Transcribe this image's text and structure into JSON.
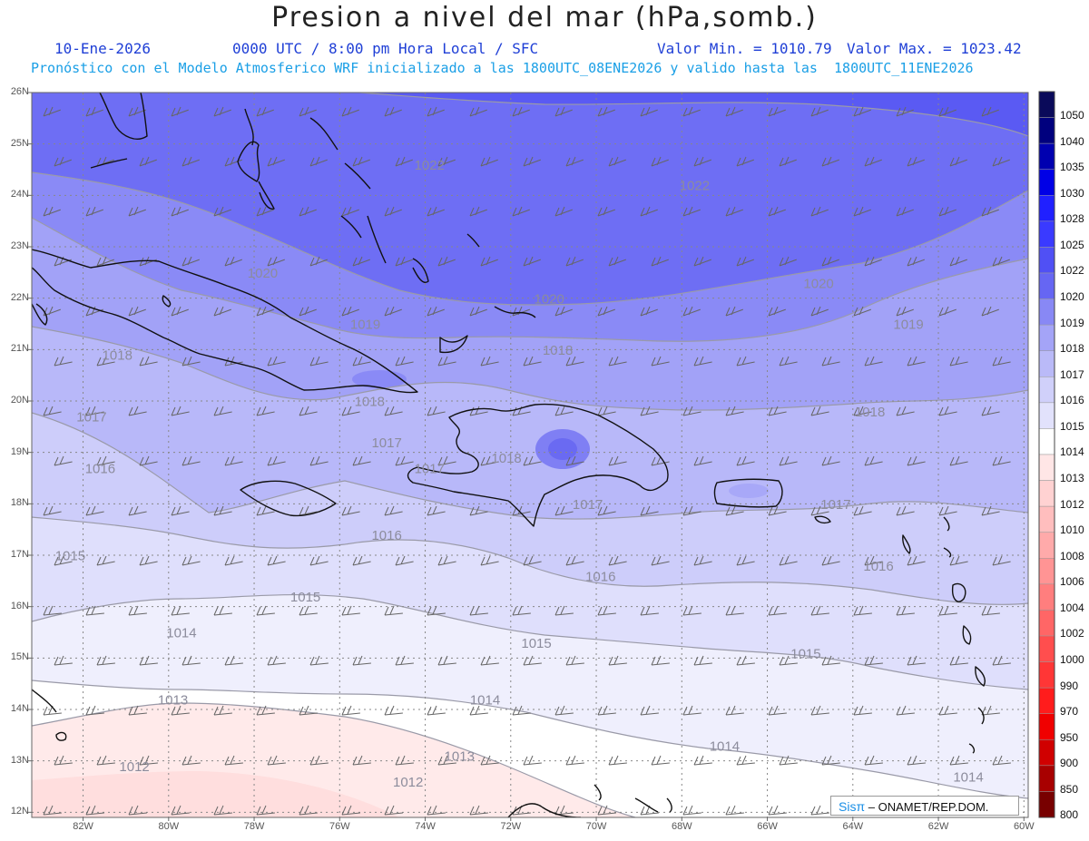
{
  "title": "Presion a nivel del mar (hPa,somb.)",
  "header": {
    "date": "10-Ene-2026",
    "time_info": "0000 UTC / 8:00 pm Hora Local / SFC",
    "min_value": "Valor Min. = 1010.79",
    "max_value": "Valor Max. = 1023.42",
    "model_info": "Pronóstico con el Modelo Atmosferico WRF inicializado a las 1800UTC_08ENE2026 y valido hasta las  1800UTC_11ENE2026"
  },
  "map": {
    "lat_labels": [
      "26N",
      "25N",
      "24N",
      "23N",
      "22N",
      "21N",
      "20N",
      "19N",
      "18N",
      "17N",
      "16N",
      "15N",
      "14N",
      "13N",
      "12N"
    ],
    "lon_labels": [
      "82W",
      "80W",
      "78W",
      "76W",
      "74W",
      "72W",
      "70W",
      "68W",
      "66W",
      "64W",
      "62W",
      "60W"
    ],
    "contour_labels": [
      {
        "text": "1022",
        "lon": -73.9,
        "lat": 24.5
      },
      {
        "text": "1022",
        "lon": -67.7,
        "lat": 24.1
      },
      {
        "text": "1020",
        "lon": -77.8,
        "lat": 22.4
      },
      {
        "text": "1020",
        "lon": -71.1,
        "lat": 21.9
      },
      {
        "text": "1020",
        "lon": -64.8,
        "lat": 22.2
      },
      {
        "text": "1019",
        "lon": -75.4,
        "lat": 21.4
      },
      {
        "text": "1019",
        "lon": -62.7,
        "lat": 21.4
      },
      {
        "text": "1018",
        "lon": -81.2,
        "lat": 20.8
      },
      {
        "text": "1018",
        "lon": -70.9,
        "lat": 20.9
      },
      {
        "text": "1018",
        "lon": -75.3,
        "lat": 19.9
      },
      {
        "text": "1018",
        "lon": -63.6,
        "lat": 19.7
      },
      {
        "text": "1018",
        "lon": -72.1,
        "lat": 18.8
      },
      {
        "text": "1017",
        "lon": -81.8,
        "lat": 19.6
      },
      {
        "text": "1017",
        "lon": -74.9,
        "lat": 19.1
      },
      {
        "text": "1017",
        "lon": -73.9,
        "lat": 18.6
      },
      {
        "text": "1017",
        "lon": -70.2,
        "lat": 17.9
      },
      {
        "text": "1017",
        "lon": -64.4,
        "lat": 17.9
      },
      {
        "text": "1016",
        "lon": -81.6,
        "lat": 18.6
      },
      {
        "text": "1016",
        "lon": -74.9,
        "lat": 17.3
      },
      {
        "text": "1016",
        "lon": -69.9,
        "lat": 16.5
      },
      {
        "text": "1016",
        "lon": -63.4,
        "lat": 16.7
      },
      {
        "text": "1015",
        "lon": -82.3,
        "lat": 16.9
      },
      {
        "text": "1015",
        "lon": -76.8,
        "lat": 16.1
      },
      {
        "text": "1015",
        "lon": -71.4,
        "lat": 15.2
      },
      {
        "text": "1015",
        "lon": -65.1,
        "lat": 15.0
      },
      {
        "text": "1014",
        "lon": -79.7,
        "lat": 15.4
      },
      {
        "text": "1014",
        "lon": -72.6,
        "lat": 14.1
      },
      {
        "text": "1014",
        "lon": -67.0,
        "lat": 13.2
      },
      {
        "text": "1014",
        "lon": -61.3,
        "lat": 12.6
      },
      {
        "text": "1013",
        "lon": -79.9,
        "lat": 14.1
      },
      {
        "text": "1013",
        "lon": -73.2,
        "lat": 13.0
      },
      {
        "text": "1012",
        "lon": -80.8,
        "lat": 12.8
      },
      {
        "text": "1012",
        "lon": -74.4,
        "lat": 12.5
      }
    ]
  },
  "colorbar": {
    "levels": [
      "1050",
      "1040",
      "1035",
      "1030",
      "1028",
      "1025",
      "1022",
      "1020",
      "1019",
      "1018",
      "1017",
      "1016",
      "1015",
      "1014",
      "1013",
      "1012",
      "1010",
      "1008",
      "1006",
      "1004",
      "1002",
      "1000",
      "990",
      "970",
      "950",
      "900",
      "850",
      "800"
    ],
    "colors": [
      "#0a0a5a",
      "#00007e",
      "#0000b0",
      "#0000e6",
      "#2020ff",
      "#3a3aff",
      "#5050f5",
      "#6666f3",
      "#8888f5",
      "#a4a4f7",
      "#babaf8",
      "#d0d0fa",
      "#e2e2fc",
      "#ffffff",
      "#ffe6e6",
      "#ffd2d2",
      "#ffbebe",
      "#ffaaaa",
      "#ff9494",
      "#ff7e7e",
      "#ff6666",
      "#ff4e4e",
      "#ff3636",
      "#ff1c1c",
      "#f00000",
      "#d00000",
      "#a80000",
      "#780000"
    ]
  },
  "credit": {
    "logo": "Sisπ",
    "text": "– ONAMET/REP.DOM."
  }
}
